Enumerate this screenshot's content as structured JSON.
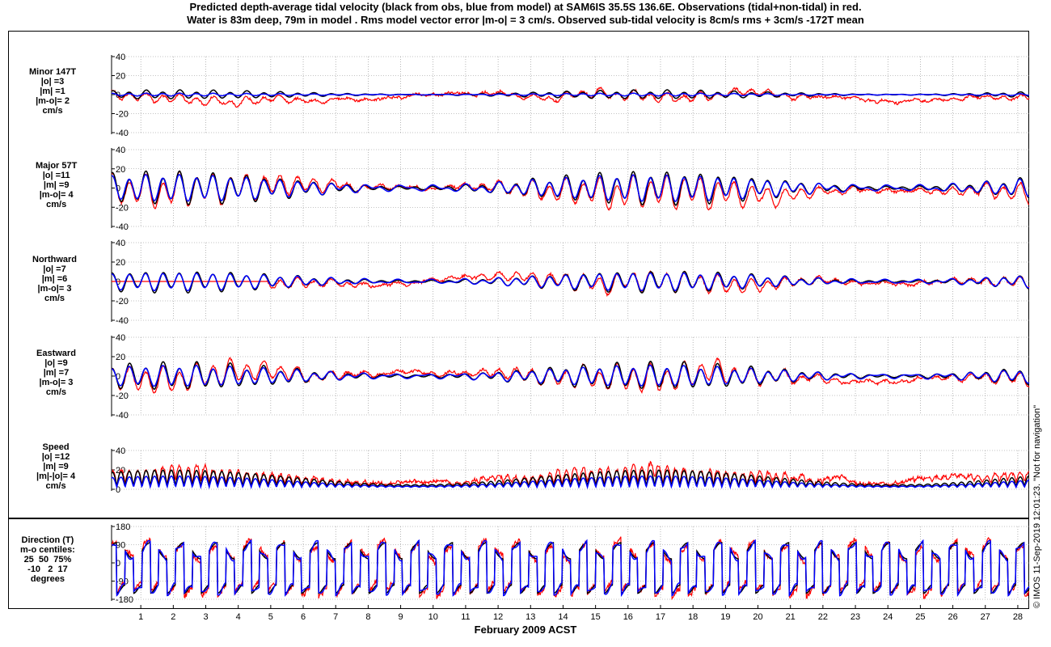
{
  "titles": {
    "line1": "Predicted depth-average tidal velocity (black from obs, blue from model) at SAM6IS 35.5S 136.6E. Observations (tidal+non-tidal) in red.",
    "line2": "Water is 83m deep, 79m in model . Rms model vector error |m-o| = 3 cm/s. Observed sub-tidal velocity is 8cm/s rms + 3cm/s -172T mean"
  },
  "credit": "© IMOS 11-Sep-2019 12:01:23. \"Not for navigation\"",
  "colors": {
    "obs_tidal": "#000000",
    "model": "#0000ff",
    "observations": "#ff0000"
  },
  "chart_data": {
    "type": "line",
    "xlabel": "February 2009 ACST",
    "x_ticks": [
      "1",
      "2",
      "3",
      "4",
      "5",
      "6",
      "7",
      "8",
      "9",
      "10",
      "11",
      "12",
      "13",
      "14",
      "15",
      "16",
      "17",
      "18",
      "19",
      "20",
      "21",
      "22",
      "23",
      "24",
      "25",
      "26",
      "27",
      "28"
    ],
    "xlim": [
      0.1,
      28.35
    ],
    "panels": [
      {
        "id": "minor",
        "label": [
          "Minor 147T",
          "|o| =3",
          "|m| =1",
          "|m-o|= 2",
          "cm/s"
        ],
        "ylim": [
          -40,
          40
        ],
        "yticks": [
          "40",
          "20",
          "0",
          "-20",
          "-40"
        ],
        "tidal_amp": {
          "obs": 3,
          "model": 1
        }
      },
      {
        "id": "major",
        "label": [
          "Major 57T",
          "|o| =11",
          "|m| =9",
          "|m-o|= 4",
          "cm/s"
        ],
        "ylim": [
          -40,
          40
        ],
        "yticks": [
          "40",
          "20",
          "0",
          "-20",
          "-40"
        ],
        "tidal_amp": {
          "obs": 11,
          "model": 9
        }
      },
      {
        "id": "north",
        "label": [
          "Northward",
          "|o| =7",
          "|m| =6",
          "|m-o|= 3",
          "cm/s"
        ],
        "ylim": [
          -40,
          40
        ],
        "yticks": [
          "40",
          "20",
          "0",
          "-20",
          "-40"
        ],
        "tidal_amp": {
          "obs": 7,
          "model": 6
        }
      },
      {
        "id": "east",
        "label": [
          "Eastward",
          "|o| =9",
          "|m| =7",
          "|m-o|= 3",
          "cm/s"
        ],
        "ylim": [
          -40,
          40
        ],
        "yticks": [
          "40",
          "20",
          "0",
          "-20",
          "-40"
        ],
        "tidal_amp": {
          "obs": 9,
          "model": 7
        }
      },
      {
        "id": "speed",
        "label": [
          "Speed",
          "|o| =12",
          "|m| =9",
          "|m|-|o|= 4",
          "cm/s"
        ],
        "ylim": [
          0,
          40
        ],
        "yticks": [
          "40",
          "20",
          "0"
        ],
        "tidal_amp": {
          "obs": 12,
          "model": 9
        }
      },
      {
        "id": "direction",
        "label": [
          "Direction (T)",
          "m-o centiles:",
          "25  50  75%",
          "-10   2  17",
          "degrees"
        ],
        "ylim": [
          -180,
          180
        ],
        "yticks": [
          "180",
          "90",
          "0",
          "-90",
          "-180"
        ]
      }
    ]
  }
}
